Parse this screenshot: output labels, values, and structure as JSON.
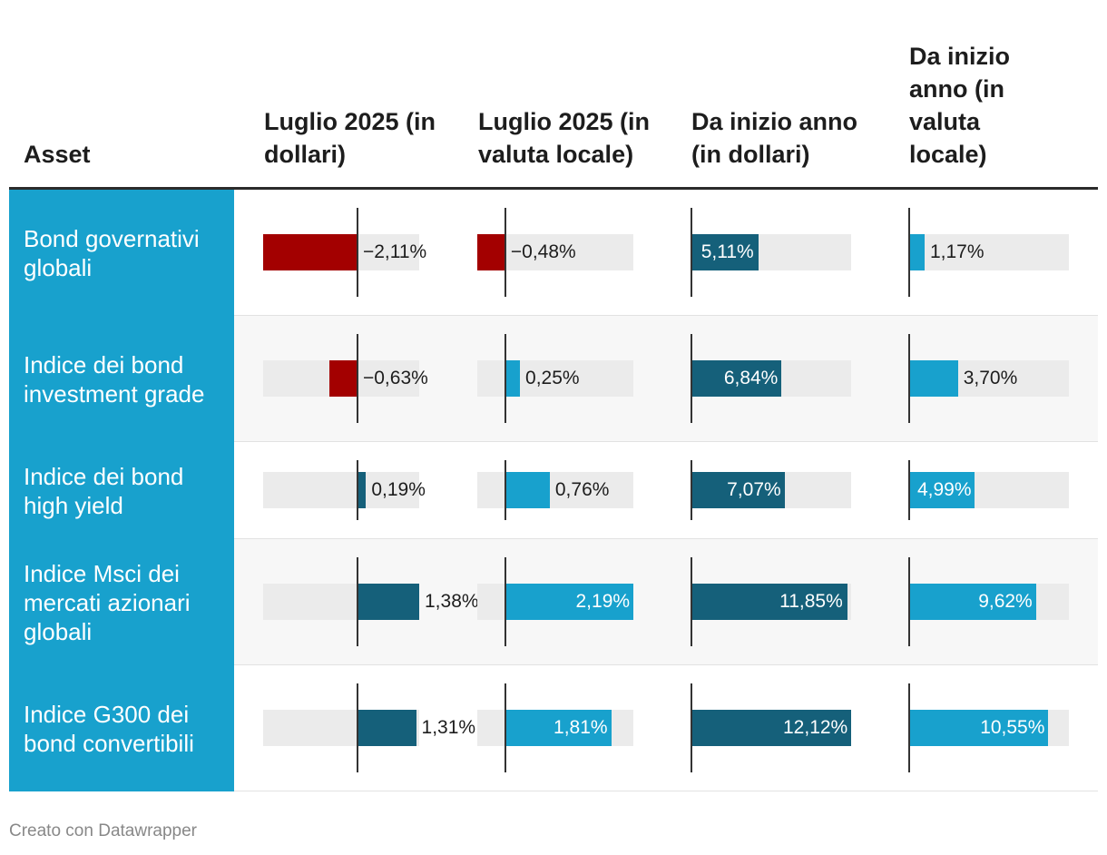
{
  "columns": {
    "asset": "Asset",
    "headers": [
      "Luglio 2025 (in dollari)",
      "Luglio 2025 (in valuta locale)",
      "Da inizio anno (in dollari)",
      "Da inizio anno (in valuta locale)"
    ]
  },
  "rows": [
    {
      "asset": "Bond governativi globali",
      "labels": [
        "−2,11%",
        "−0,48%",
        "5,11%",
        "1,17%"
      ]
    },
    {
      "asset": "Indice dei bond investment grade",
      "labels": [
        "−0,63%",
        "0,25%",
        "6,84%",
        "3,70%"
      ]
    },
    {
      "asset": "Indice dei bond high yield",
      "labels": [
        "0,19%",
        "0,76%",
        "7,07%",
        "4,99%"
      ]
    },
    {
      "asset": "Indice Msci dei mercati azionari globali",
      "labels": [
        "1,38%",
        "2,19%",
        "11,85%",
        "9,62%"
      ]
    },
    {
      "asset": "Indice G300 dei bond convertibili",
      "labels": [
        "1,31%",
        "1,81%",
        "12,12%",
        "10,55%"
      ]
    }
  ],
  "footer": "Creato con Datawrapper",
  "colors": {
    "asset_bg": "#18a1cd",
    "positive_dollar": "#15607a",
    "positive_local": "#18a1cd",
    "negative": "#a30000",
    "bar_track": "#ebebeb"
  },
  "chart_data": {
    "type": "table",
    "categories": [
      "Bond governativi globali",
      "Indice dei bond investment grade",
      "Indice dei bond high yield",
      "Indice Msci dei mercati azionari globali",
      "Indice G300 dei bond convertibili"
    ],
    "series": [
      {
        "name": "Luglio 2025 (in dollari)",
        "values": [
          -2.11,
          -0.63,
          0.19,
          1.38,
          1.31
        ]
      },
      {
        "name": "Luglio 2025 (in valuta locale)",
        "values": [
          -0.48,
          0.25,
          0.76,
          2.19,
          1.81
        ]
      },
      {
        "name": "Da inizio anno (in dollari)",
        "values": [
          5.11,
          6.84,
          7.07,
          11.85,
          12.12
        ]
      },
      {
        "name": "Da inizio anno (in valuta locale)",
        "values": [
          1.17,
          3.7,
          4.99,
          9.62,
          10.55
        ]
      }
    ]
  }
}
